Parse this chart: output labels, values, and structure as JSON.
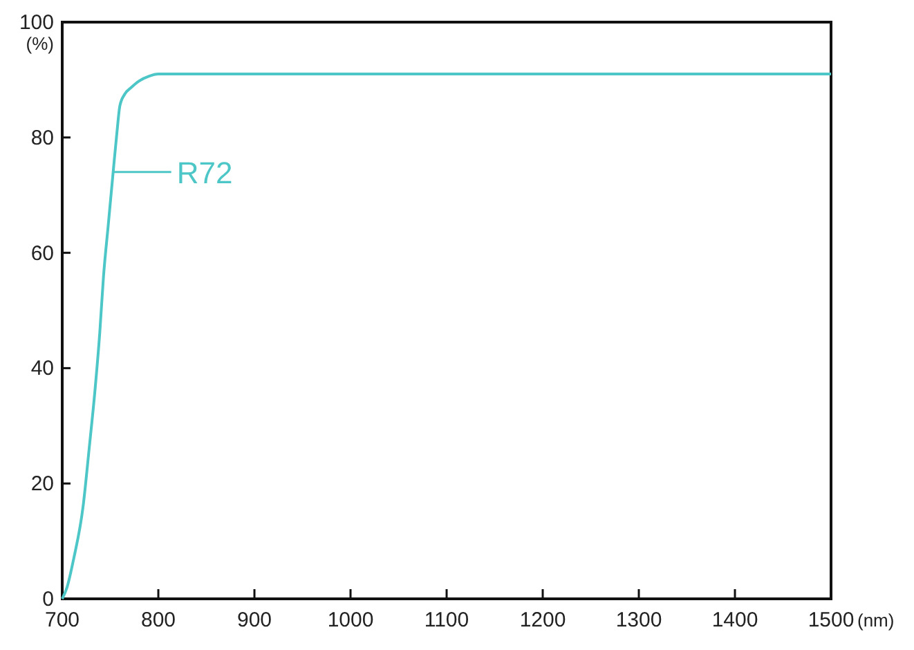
{
  "chart_data": {
    "type": "line",
    "xlabel": "(nm)",
    "ylabel": "(%)",
    "xlim": [
      700,
      1500
    ],
    "ylim": [
      0,
      100
    ],
    "xticks": [
      700,
      800,
      900,
      1000,
      1100,
      1200,
      1300,
      1400,
      1500
    ],
    "yticks": [
      0,
      20,
      40,
      60,
      80,
      100
    ],
    "grid": false,
    "series": [
      {
        "color": "#4cc6c6",
        "x": [
          700,
          705,
          712,
          721.7,
          728,
          734,
          739,
          743,
          748,
          753,
          757,
          760,
          765,
          772,
          780,
          790,
          800,
          820,
          900,
          1000,
          1200,
          1500
        ],
        "values": [
          0,
          2,
          7,
          16,
          26,
          36,
          46,
          56,
          65,
          74,
          81,
          85.5,
          87.5,
          88.7,
          89.8,
          90.6,
          91,
          91,
          91,
          91,
          91,
          91
        ]
      }
    ],
    "annotations": [
      {
        "text": "R72",
        "x": 753,
        "y": 74
      }
    ]
  }
}
